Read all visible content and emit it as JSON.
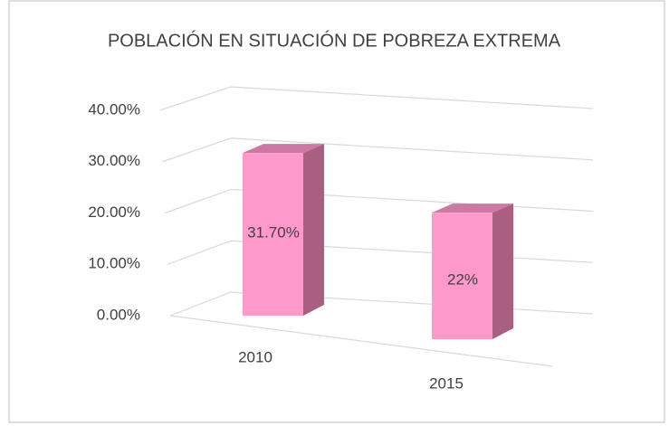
{
  "chart_data": {
    "type": "bar3d",
    "title": "POBLACIÓN EN SITUACIÓN DE POBREZA EXTREMA",
    "categories": [
      "2010",
      "2015"
    ],
    "values": [
      31.7,
      22
    ],
    "value_labels": [
      "31.70%",
      "22%"
    ],
    "color": "#ff99cc",
    "ylim": [
      0,
      40
    ],
    "yticks": [
      {
        "value": 0,
        "label": "0.00%"
      },
      {
        "value": 10,
        "label": "10.00%"
      },
      {
        "value": 20,
        "label": "20.00%"
      },
      {
        "value": 30,
        "label": "30.00%"
      },
      {
        "value": 40,
        "label": "40.00%"
      }
    ],
    "grid": true
  }
}
